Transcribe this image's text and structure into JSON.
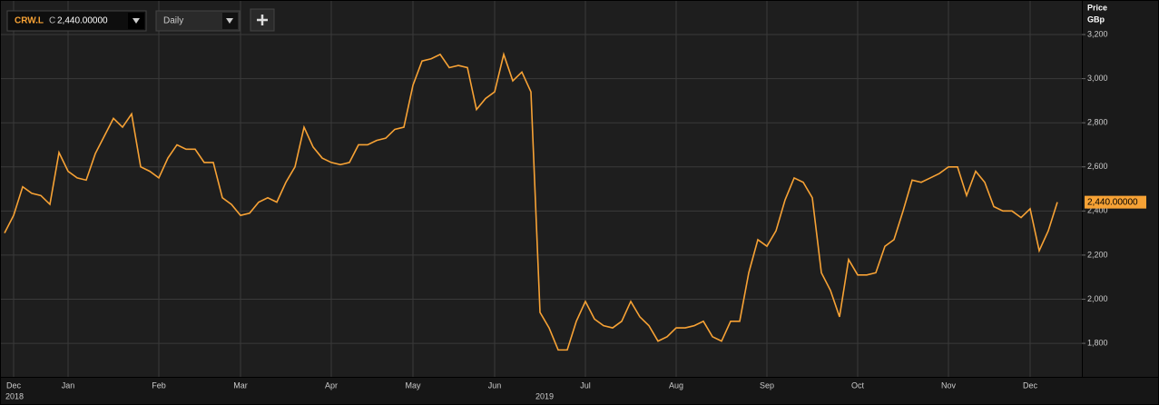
{
  "chart_data": {
    "type": "line",
    "categories": [
      null,
      "Dec",
      null,
      null,
      null,
      null,
      null,
      "Jan",
      null,
      null,
      null,
      null,
      null,
      null,
      null,
      null,
      null,
      "Feb",
      null,
      null,
      null,
      null,
      null,
      null,
      null,
      null,
      "Mar",
      null,
      null,
      null,
      null,
      null,
      null,
      null,
      null,
      null,
      "Apr",
      null,
      null,
      null,
      null,
      null,
      null,
      null,
      null,
      "May",
      null,
      null,
      null,
      null,
      null,
      null,
      null,
      null,
      "Jun",
      null,
      null,
      null,
      null,
      null,
      null,
      null,
      null,
      null,
      "Jul",
      null,
      null,
      null,
      null,
      null,
      null,
      null,
      null,
      null,
      "Aug",
      null,
      null,
      null,
      null,
      null,
      null,
      null,
      null,
      null,
      "Sep",
      null,
      null,
      null,
      null,
      null,
      null,
      null,
      null,
      null,
      "Oct",
      null,
      null,
      null,
      null,
      null,
      null,
      null,
      null,
      null,
      "Nov",
      null,
      null,
      null,
      null,
      null,
      null,
      null,
      null,
      "Dec",
      null,
      null,
      null
    ],
    "series": [
      {
        "name": "CRW.L",
        "color": "#f7a235",
        "values": [
          2300,
          2380,
          2510,
          2480,
          2470,
          2430,
          2665,
          2580,
          2550,
          2540,
          2660,
          2740,
          2820,
          2780,
          2840,
          2600,
          2580,
          2550,
          2640,
          2700,
          2680,
          2680,
          2620,
          2620,
          2460,
          2430,
          2380,
          2390,
          2440,
          2460,
          2440,
          2530,
          2600,
          2780,
          2690,
          2640,
          2620,
          2610,
          2620,
          2700,
          2700,
          2720,
          2730,
          2770,
          2780,
          2970,
          3080,
          3090,
          3110,
          3050,
          3060,
          3050,
          2860,
          2910,
          2940,
          3110,
          2990,
          3030,
          2940,
          1940,
          1870,
          1770,
          1770,
          1900,
          1990,
          1910,
          1880,
          1870,
          1900,
          1990,
          1920,
          1880,
          1810,
          1830,
          1870,
          1870,
          1880,
          1900,
          1830,
          1810,
          1900,
          1900,
          2120,
          2270,
          2240,
          2310,
          2450,
          2550,
          2530,
          2460,
          2120,
          2040,
          1920,
          2180,
          2110,
          2110,
          2120,
          2240,
          2270,
          2400,
          2540,
          2530,
          2550,
          2570,
          2600,
          2600,
          2470,
          2580,
          2530,
          2420,
          2400,
          2400,
          2370,
          2410,
          2220,
          2310,
          2440
        ]
      }
    ],
    "ylim": [
      1648,
      3336
    ],
    "yticks": [
      {
        "value": 1800,
        "label": "1,800"
      },
      {
        "value": 2000,
        "label": "2,000"
      },
      {
        "value": 2200,
        "label": "2,200"
      },
      {
        "value": 2400,
        "label": "2,400"
      },
      {
        "value": 2600,
        "label": "2,600"
      },
      {
        "value": 2800,
        "label": "2,800"
      },
      {
        "value": 3000,
        "label": "3,000"
      },
      {
        "value": 3200,
        "label": "3,200"
      }
    ],
    "grid": true,
    "y_axis_label": [
      "Price",
      "GBp"
    ],
    "years": [
      "2018",
      "2019"
    ],
    "price_type": "C",
    "last_price": {
      "value": 2440,
      "label": "2,440.00000"
    },
    "interval": "Daily"
  }
}
